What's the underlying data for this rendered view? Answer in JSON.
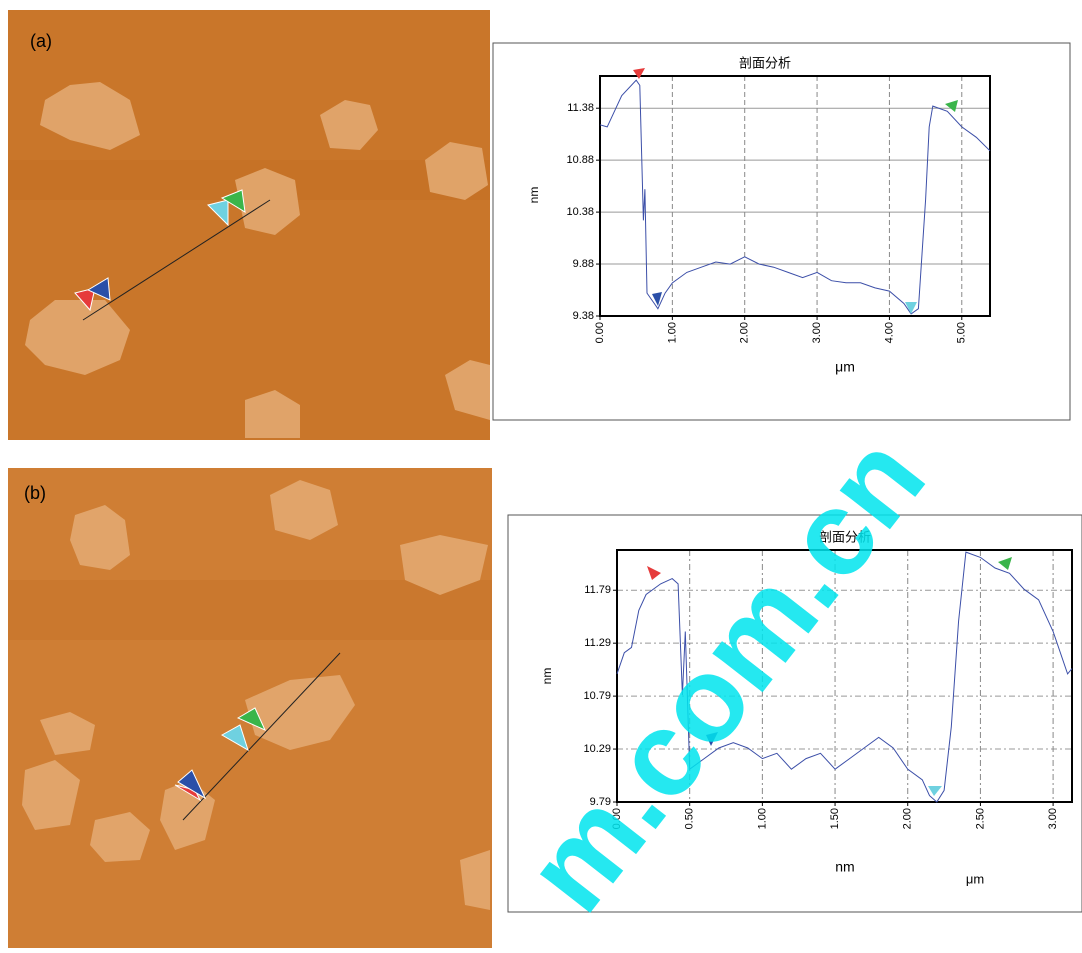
{
  "panels": [
    "(a)",
    "(b)"
  ],
  "watermark": "m.com.cn",
  "chart_data": [
    {
      "type": "line",
      "title": "剖面分析",
      "ylabel": "nm",
      "xlabel": "μm",
      "xlim": [
        0,
        5.39
      ],
      "ylim": [
        9.38,
        11.69
      ],
      "xticks": [
        {
          "value": 0,
          "label": "0.00"
        },
        {
          "value": 1,
          "label": "1.00"
        },
        {
          "value": 2,
          "label": "2.00"
        },
        {
          "value": 3,
          "label": "3.00"
        },
        {
          "value": 4,
          "label": "4.00"
        },
        {
          "value": 5,
          "label": "5.00"
        }
      ],
      "yticks": [
        9.38,
        9.88,
        10.38,
        10.88,
        11.38
      ],
      "grid": true,
      "series": [
        {
          "color": "#3c4fa8",
          "x": [
            0,
            0.1,
            0.3,
            0.5,
            0.55,
            0.6,
            0.62,
            0.65,
            0.75,
            0.8,
            0.9,
            1.0,
            1.2,
            1.4,
            1.6,
            1.8,
            2.0,
            2.2,
            2.4,
            2.6,
            2.8,
            3.0,
            3.2,
            3.4,
            3.6,
            3.8,
            4.0,
            4.2,
            4.3,
            4.4,
            4.5,
            4.55,
            4.6,
            4.8,
            5.0,
            5.2,
            5.39
          ],
          "values": [
            11.22,
            11.2,
            11.5,
            11.65,
            11.6,
            10.3,
            10.6,
            9.6,
            9.5,
            9.45,
            9.6,
            9.7,
            9.8,
            9.85,
            9.9,
            9.88,
            9.95,
            9.88,
            9.85,
            9.8,
            9.75,
            9.8,
            9.72,
            9.7,
            9.7,
            9.65,
            9.62,
            9.5,
            9.4,
            9.45,
            10.5,
            11.2,
            11.4,
            11.35,
            11.2,
            11.1,
            10.97
          ]
        }
      ]
    },
    {
      "type": "line",
      "title": "剖面分析",
      "ylabel": "nm",
      "xlabel": "nm",
      "x_unit": "μm",
      "xlim": [
        0,
        3.13
      ],
      "ylim": [
        9.79,
        12.17
      ],
      "xticks": [
        {
          "value": 0,
          "label": "0.00"
        },
        {
          "value": 0.5,
          "label": "0.50"
        },
        {
          "value": 1,
          "label": "1.00"
        },
        {
          "value": 1.5,
          "label": "1.50"
        },
        {
          "value": 2,
          "label": "2.00"
        },
        {
          "value": 2.5,
          "label": "2.50"
        },
        {
          "value": 3,
          "label": "3.00"
        }
      ],
      "yticks": [
        9.79,
        10.29,
        10.79,
        11.29,
        11.79
      ],
      "grid": true,
      "series": [
        {
          "color": "#3c4fa8",
          "x": [
            0,
            0.05,
            0.1,
            0.15,
            0.2,
            0.3,
            0.38,
            0.42,
            0.45,
            0.47,
            0.5,
            0.6,
            0.7,
            0.8,
            0.9,
            1.0,
            1.1,
            1.2,
            1.3,
            1.4,
            1.5,
            1.6,
            1.7,
            1.8,
            1.9,
            2.0,
            2.1,
            2.15,
            2.2,
            2.25,
            2.3,
            2.35,
            2.4,
            2.5,
            2.6,
            2.7,
            2.8,
            2.9,
            3.0,
            3.1,
            3.13
          ],
          "values": [
            11.0,
            11.2,
            11.25,
            11.6,
            11.75,
            11.85,
            11.9,
            11.85,
            10.8,
            11.4,
            10.1,
            10.2,
            10.3,
            10.35,
            10.3,
            10.2,
            10.25,
            10.1,
            10.2,
            10.25,
            10.1,
            10.2,
            10.3,
            10.4,
            10.3,
            10.1,
            10.0,
            9.85,
            9.79,
            9.9,
            10.5,
            11.5,
            12.15,
            12.1,
            12.0,
            11.95,
            11.8,
            11.7,
            11.4,
            11.0,
            11.05
          ]
        }
      ]
    }
  ]
}
